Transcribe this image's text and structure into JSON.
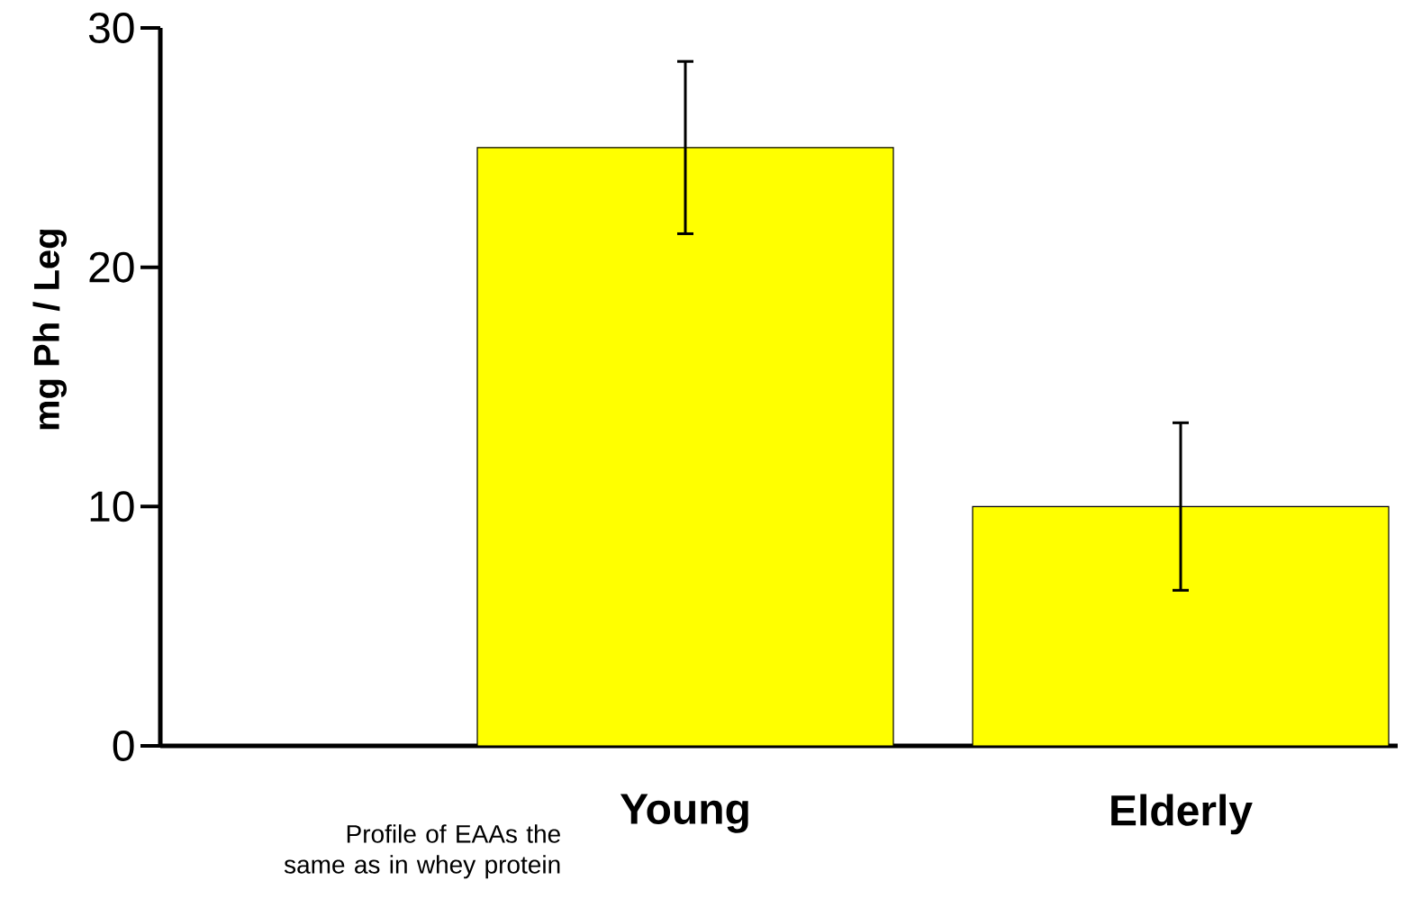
{
  "chart_data": {
    "type": "bar",
    "ylabel": "mg Ph / Leg",
    "categories": [
      null,
      "Young",
      "Elderly"
    ],
    "values": [
      null,
      25,
      10
    ],
    "errors": [
      null,
      3.6,
      3.5
    ],
    "color": "#ffff00",
    "ylim": [
      0,
      30
    ],
    "yticks": [
      0,
      10,
      20,
      30
    ],
    "annotations": [
      "Profile of EAAs the same as in whey protein"
    ]
  }
}
